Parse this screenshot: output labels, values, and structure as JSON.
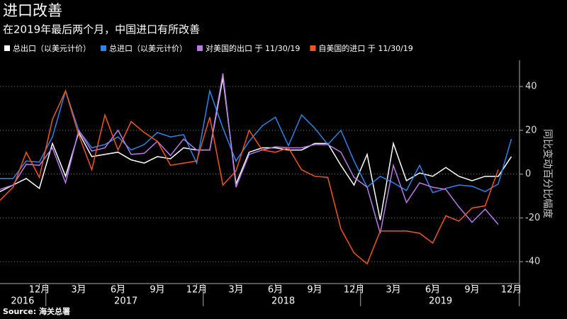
{
  "chart_data": {
    "type": "line",
    "title": "进口改善",
    "subtitle": "在2019年最后两个月，中国进口有所改善",
    "source": "Source: 海关总署",
    "ylabel": "同比变动百分比幅度",
    "categories": [
      null,
      null,
      null,
      "12月",
      null,
      null,
      "3月",
      null,
      null,
      "6月",
      null,
      null,
      "9月",
      null,
      null,
      "12月",
      null,
      null,
      "3月",
      null,
      null,
      "6月",
      null,
      null,
      "9月",
      null,
      null,
      "12月",
      null,
      null,
      "3月",
      null,
      null,
      "6月",
      null,
      null,
      "9月",
      null,
      null,
      "12月"
    ],
    "years": [
      "2016",
      "2017",
      "2018",
      "2019"
    ],
    "ylim": [
      -50,
      52
    ],
    "yticks": [
      -40,
      -20,
      0,
      20,
      40
    ],
    "grid": true,
    "series": [
      {
        "name": "总出口（以美元计价）",
        "color": "#ffffff",
        "values": [
          -8,
          -5,
          -2,
          -6.5,
          14,
          -1,
          19,
          8,
          9,
          10,
          6.5,
          5,
          8,
          7,
          12,
          11,
          11,
          44,
          -4.5,
          10,
          12,
          12,
          11,
          11,
          14,
          14,
          4,
          -5,
          9,
          -21,
          14,
          -3,
          0.5,
          -1,
          3,
          -1,
          -3,
          -1,
          -1,
          8
        ]
      },
      {
        "name": "总进口（以美元计价）",
        "color": "#2a86e8",
        "values": [
          -2,
          -2,
          6,
          5.5,
          17,
          38,
          20,
          12,
          13.5,
          17,
          11,
          13.5,
          19,
          17,
          18,
          5,
          38,
          21,
          6,
          15,
          22,
          26,
          13,
          27,
          21,
          13.5,
          20,
          6,
          -6,
          -1,
          -4,
          -7.5,
          4,
          -8.5,
          -6.5,
          -5,
          -5.5,
          -8,
          -4.5,
          16
        ]
      },
      {
        "name": "对美国的出口 于 11/30/19",
        "color": "#b77ae8",
        "values": [
          -7,
          -5,
          4.5,
          4,
          12,
          -4,
          20,
          10.5,
          12,
          20,
          9,
          9.5,
          15,
          8.5,
          16,
          11,
          11,
          46,
          -6,
          9,
          11,
          12.5,
          12,
          12,
          13.5,
          13.5,
          10,
          -1.5,
          -6,
          -27,
          4,
          -13,
          -4,
          -6,
          -7,
          -15,
          -22,
          -16,
          -23,
          null
        ]
      },
      {
        "name": "自美国的进口 于 11/30/19",
        "color": "#f0561d",
        "values": [
          -12,
          -6,
          10,
          -1.5,
          25,
          38,
          18,
          2,
          27,
          11,
          24,
          19,
          15,
          4,
          5,
          6,
          26,
          -5,
          1.5,
          20,
          11,
          10,
          12,
          2,
          -1,
          -1.5,
          -25,
          -36,
          -41,
          -26,
          -26,
          -26,
          -27,
          -31.5,
          -19,
          -21.5,
          -15.5,
          -14.5,
          2,
          null
        ]
      }
    ]
  }
}
